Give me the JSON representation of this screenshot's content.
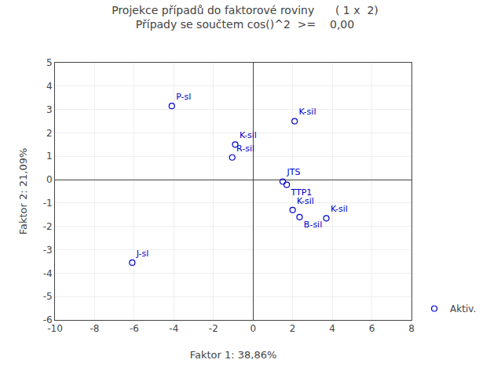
{
  "chart_data": {
    "type": "scatter",
    "title": "Projekce případů do faktorové roviny      ( 1 x  2)",
    "subtitle": "Případy se součtem cos()^2  >=    0,00",
    "xlabel": "Faktor 1: 38,86%",
    "ylabel": "Faktor 2: 21,09%",
    "series": [
      {
        "name": "Aktiv.",
        "color": "#0000cc",
        "marker": "open circle",
        "x": [
          -4.1,
          -6.1,
          2.1,
          -0.9,
          -1.05,
          1.5,
          1.7,
          2.0,
          2.35,
          3.7
        ],
        "y": [
          3.15,
          -3.55,
          2.5,
          1.5,
          0.95,
          -0.08,
          -0.22,
          -1.3,
          -1.6,
          -1.65
        ],
        "labels": [
          "P-sl",
          "J-sl",
          "K-sil",
          "K-sil",
          "R-sil",
          "JTS",
          "TTP1",
          "K-sil",
          "B-sil",
          "K-sil"
        ]
      }
    ],
    "xlim": [
      -10,
      8
    ],
    "ylim": [
      -6,
      5
    ],
    "xticks": [
      -10,
      -8,
      -6,
      -4,
      -2,
      0,
      2,
      4,
      6,
      8
    ],
    "yticks": [
      -6,
      -5,
      -4,
      -3,
      -2,
      -1,
      0,
      1,
      2,
      3,
      4,
      5
    ],
    "grid": true,
    "legend": "lower right"
  }
}
